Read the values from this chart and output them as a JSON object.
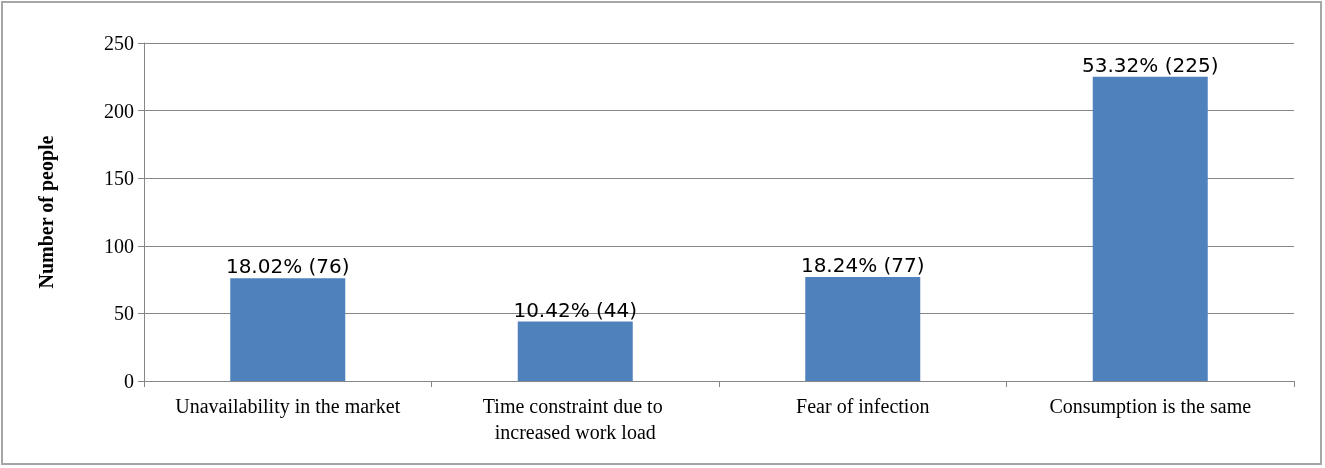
{
  "chart_data": {
    "type": "bar",
    "ylabel": "Number of people",
    "categories": [
      "Unavailability in the market",
      "Time constraint due to increased work load",
      "Fear of infection",
      "Consumption is the same"
    ],
    "values": [
      76,
      44,
      77,
      225
    ],
    "value_labels": [
      "18.02% (76)",
      "10.42% (44)",
      "18.24% (77)",
      "53.32% (225)"
    ],
    "color": "#4f81bd",
    "ylim": [
      0,
      250
    ],
    "yticks": [
      0,
      50,
      100,
      150,
      200,
      250
    ],
    "grid": "y"
  }
}
